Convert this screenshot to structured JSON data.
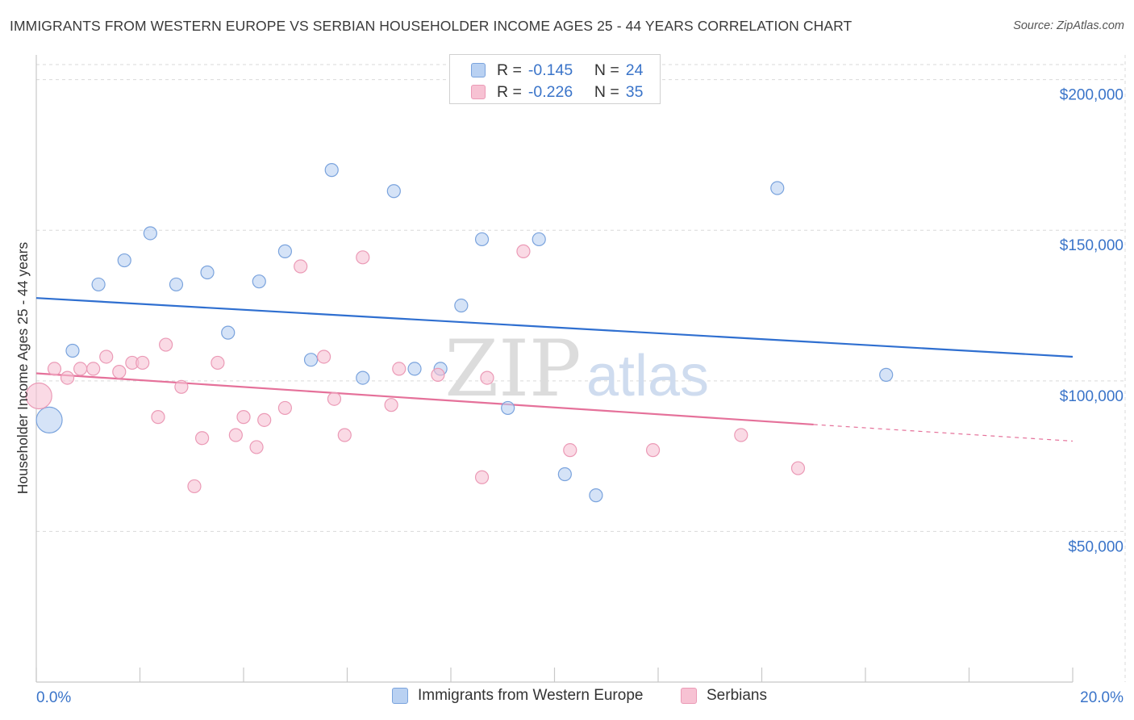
{
  "title": "IMMIGRANTS FROM WESTERN EUROPE VS SERBIAN HOUSEHOLDER INCOME AGES 25 - 44 YEARS CORRELATION CHART",
  "source": "Source: ZipAtlas.com",
  "watermark": {
    "zip": "ZIP",
    "atlas": "atlas"
  },
  "colors": {
    "blue": "#2f6fd0",
    "blue_fill": "#b9d1f2",
    "blue_stroke": "#7aa3dd",
    "pink": "#e5719a",
    "pink_fill": "#f7c2d3",
    "pink_stroke": "#eb9ab6",
    "tick_label": "#3a74c9",
    "grid": "#d9d9d9"
  },
  "legend": {
    "items": [
      {
        "r_label": "R =",
        "r_value": "-0.145",
        "n_label": "N =",
        "n_value": "24",
        "color": "blue"
      },
      {
        "r_label": "R =",
        "r_value": "-0.226",
        "n_label": "N =",
        "n_value": "35",
        "color": "pink"
      }
    ]
  },
  "chart_data": {
    "type": "scatter",
    "title": "IMMIGRANTS FROM WESTERN EUROPE VS SERBIAN HOUSEHOLDER INCOME AGES 25 - 44 YEARS CORRELATION CHART",
    "xlabel": "",
    "ylabel": "Householder Income Ages 25 - 44 years",
    "xlim": [
      0,
      20
    ],
    "ylim": [
      0,
      205000
    ],
    "x_tick_labels": [
      "0.0%",
      "20.0%"
    ],
    "y_ticks": [
      50000,
      100000,
      150000,
      200000
    ],
    "y_tick_labels": [
      "$50,000",
      "$100,000",
      "$150,000",
      "$200,000"
    ],
    "grid": true,
    "legend_position": "top-center",
    "series": [
      {
        "name": "Immigrants from Western Europe",
        "color": "blue",
        "points": [
          {
            "x": 0.25,
            "y": 87000,
            "big": true
          },
          {
            "x": 0.7,
            "y": 110000
          },
          {
            "x": 1.2,
            "y": 132000
          },
          {
            "x": 1.7,
            "y": 140000
          },
          {
            "x": 2.2,
            "y": 149000
          },
          {
            "x": 2.7,
            "y": 132000
          },
          {
            "x": 3.3,
            "y": 136000
          },
          {
            "x": 3.7,
            "y": 116000
          },
          {
            "x": 4.3,
            "y": 133000
          },
          {
            "x": 4.8,
            "y": 143000
          },
          {
            "x": 5.3,
            "y": 107000
          },
          {
            "x": 5.7,
            "y": 170000
          },
          {
            "x": 6.3,
            "y": 101000
          },
          {
            "x": 6.9,
            "y": 163000
          },
          {
            "x": 7.3,
            "y": 104000
          },
          {
            "x": 7.8,
            "y": 104000
          },
          {
            "x": 8.2,
            "y": 125000
          },
          {
            "x": 8.6,
            "y": 147000
          },
          {
            "x": 9.1,
            "y": 91000
          },
          {
            "x": 9.7,
            "y": 147000
          },
          {
            "x": 10.2,
            "y": 69000
          },
          {
            "x": 10.8,
            "y": 62000
          },
          {
            "x": 14.3,
            "y": 164000
          },
          {
            "x": 16.4,
            "y": 102000
          }
        ],
        "trend": {
          "x0": 0,
          "y0": 127500,
          "x1": 20,
          "y1": 108000
        }
      },
      {
        "name": "Serbians",
        "color": "pink",
        "points": [
          {
            "x": 0.05,
            "y": 95000,
            "big": true
          },
          {
            "x": 0.35,
            "y": 104000
          },
          {
            "x": 0.6,
            "y": 101000
          },
          {
            "x": 0.85,
            "y": 104000
          },
          {
            "x": 1.1,
            "y": 104000
          },
          {
            "x": 1.35,
            "y": 108000
          },
          {
            "x": 1.6,
            "y": 103000
          },
          {
            "x": 1.85,
            "y": 106000
          },
          {
            "x": 2.05,
            "y": 106000
          },
          {
            "x": 2.35,
            "y": 88000
          },
          {
            "x": 2.5,
            "y": 112000
          },
          {
            "x": 2.8,
            "y": 98000
          },
          {
            "x": 3.05,
            "y": 65000
          },
          {
            "x": 3.2,
            "y": 81000
          },
          {
            "x": 3.5,
            "y": 106000
          },
          {
            "x": 3.85,
            "y": 82000
          },
          {
            "x": 4.0,
            "y": 88000
          },
          {
            "x": 4.25,
            "y": 78000
          },
          {
            "x": 4.4,
            "y": 87000
          },
          {
            "x": 4.8,
            "y": 91000
          },
          {
            "x": 5.1,
            "y": 138000
          },
          {
            "x": 5.55,
            "y": 108000
          },
          {
            "x": 5.75,
            "y": 94000
          },
          {
            "x": 5.95,
            "y": 82000
          },
          {
            "x": 6.3,
            "y": 141000
          },
          {
            "x": 6.85,
            "y": 92000
          },
          {
            "x": 7.0,
            "y": 104000
          },
          {
            "x": 7.75,
            "y": 102000
          },
          {
            "x": 8.6,
            "y": 68000
          },
          {
            "x": 8.7,
            "y": 101000
          },
          {
            "x": 9.4,
            "y": 143000
          },
          {
            "x": 10.3,
            "y": 77000
          },
          {
            "x": 11.9,
            "y": 77000
          },
          {
            "x": 13.6,
            "y": 82000
          },
          {
            "x": 14.7,
            "y": 71000
          }
        ],
        "trend": {
          "x0": 0,
          "y0": 102500,
          "x1": 15.0,
          "y1": 85500,
          "dash_x1": 20,
          "dash_y1": 80000
        }
      }
    ]
  }
}
